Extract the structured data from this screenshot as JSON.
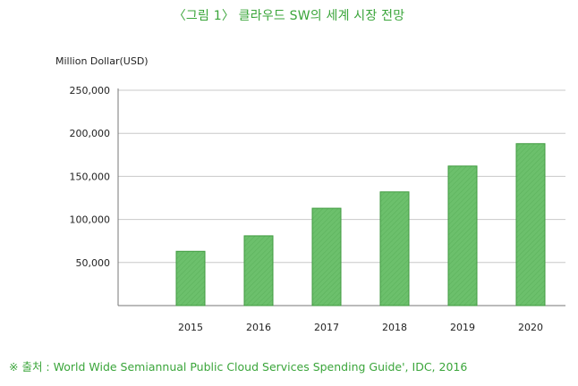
{
  "figure": {
    "title": "〈그림 1〉 클라우드 SW의 세계 시장 전망",
    "source": "※ 출처 :  World Wide Semiannual Public Cloud Services Spending Guide', IDC, 2016"
  },
  "colors": {
    "bar": "#6cc06c",
    "bar_stroke": "#3f9a3f",
    "grid": "#c8c8c8",
    "axis": "#777777",
    "title": "#3aa53a"
  },
  "chart_data": {
    "type": "bar",
    "title": "",
    "ylabel": "Million Dollar(USD)",
    "xlabel": "",
    "categories": [
      "2015",
      "2016",
      "2017",
      "2018",
      "2019",
      "2020"
    ],
    "values": [
      63000,
      81000,
      113000,
      132000,
      162000,
      188000
    ],
    "ylim": [
      0,
      250000
    ],
    "yticks": [
      50000,
      100000,
      150000,
      200000,
      250000
    ],
    "ytick_labels": [
      "50,000",
      "100,000",
      "150,000",
      "200,000",
      "250,000"
    ],
    "grid": true,
    "legend": "none"
  }
}
